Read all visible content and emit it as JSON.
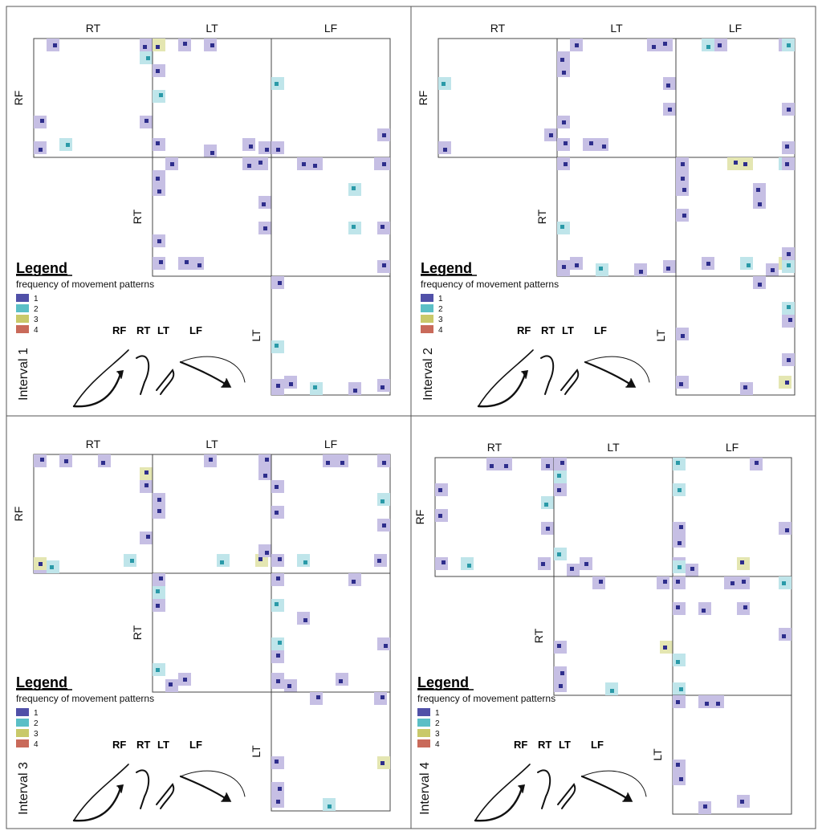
{
  "segment_labels": {
    "rt": "RT",
    "lt": "LT",
    "lf": "LF",
    "rf": "RF"
  },
  "legend": {
    "title": "Legend",
    "subtitle": "frequency of movement patterns",
    "items": [
      "1",
      "2",
      "3",
      "4"
    ],
    "colors": [
      "#5050a8",
      "#5bbfc6",
      "#c9c96a",
      "#c96a5a"
    ]
  },
  "cell_colors": {
    "light": "#c6bfe4",
    "teal": "#bfe5ea",
    "yellow": "#e4e6b2",
    "dot": "#2e2e8c",
    "dot_teal": "#2a9aa8"
  },
  "intervals": [
    {
      "label": "Interval  1"
    },
    {
      "label": "Interval  2"
    },
    {
      "label": "Interval  3"
    },
    {
      "label": "Interval  4"
    }
  ]
}
